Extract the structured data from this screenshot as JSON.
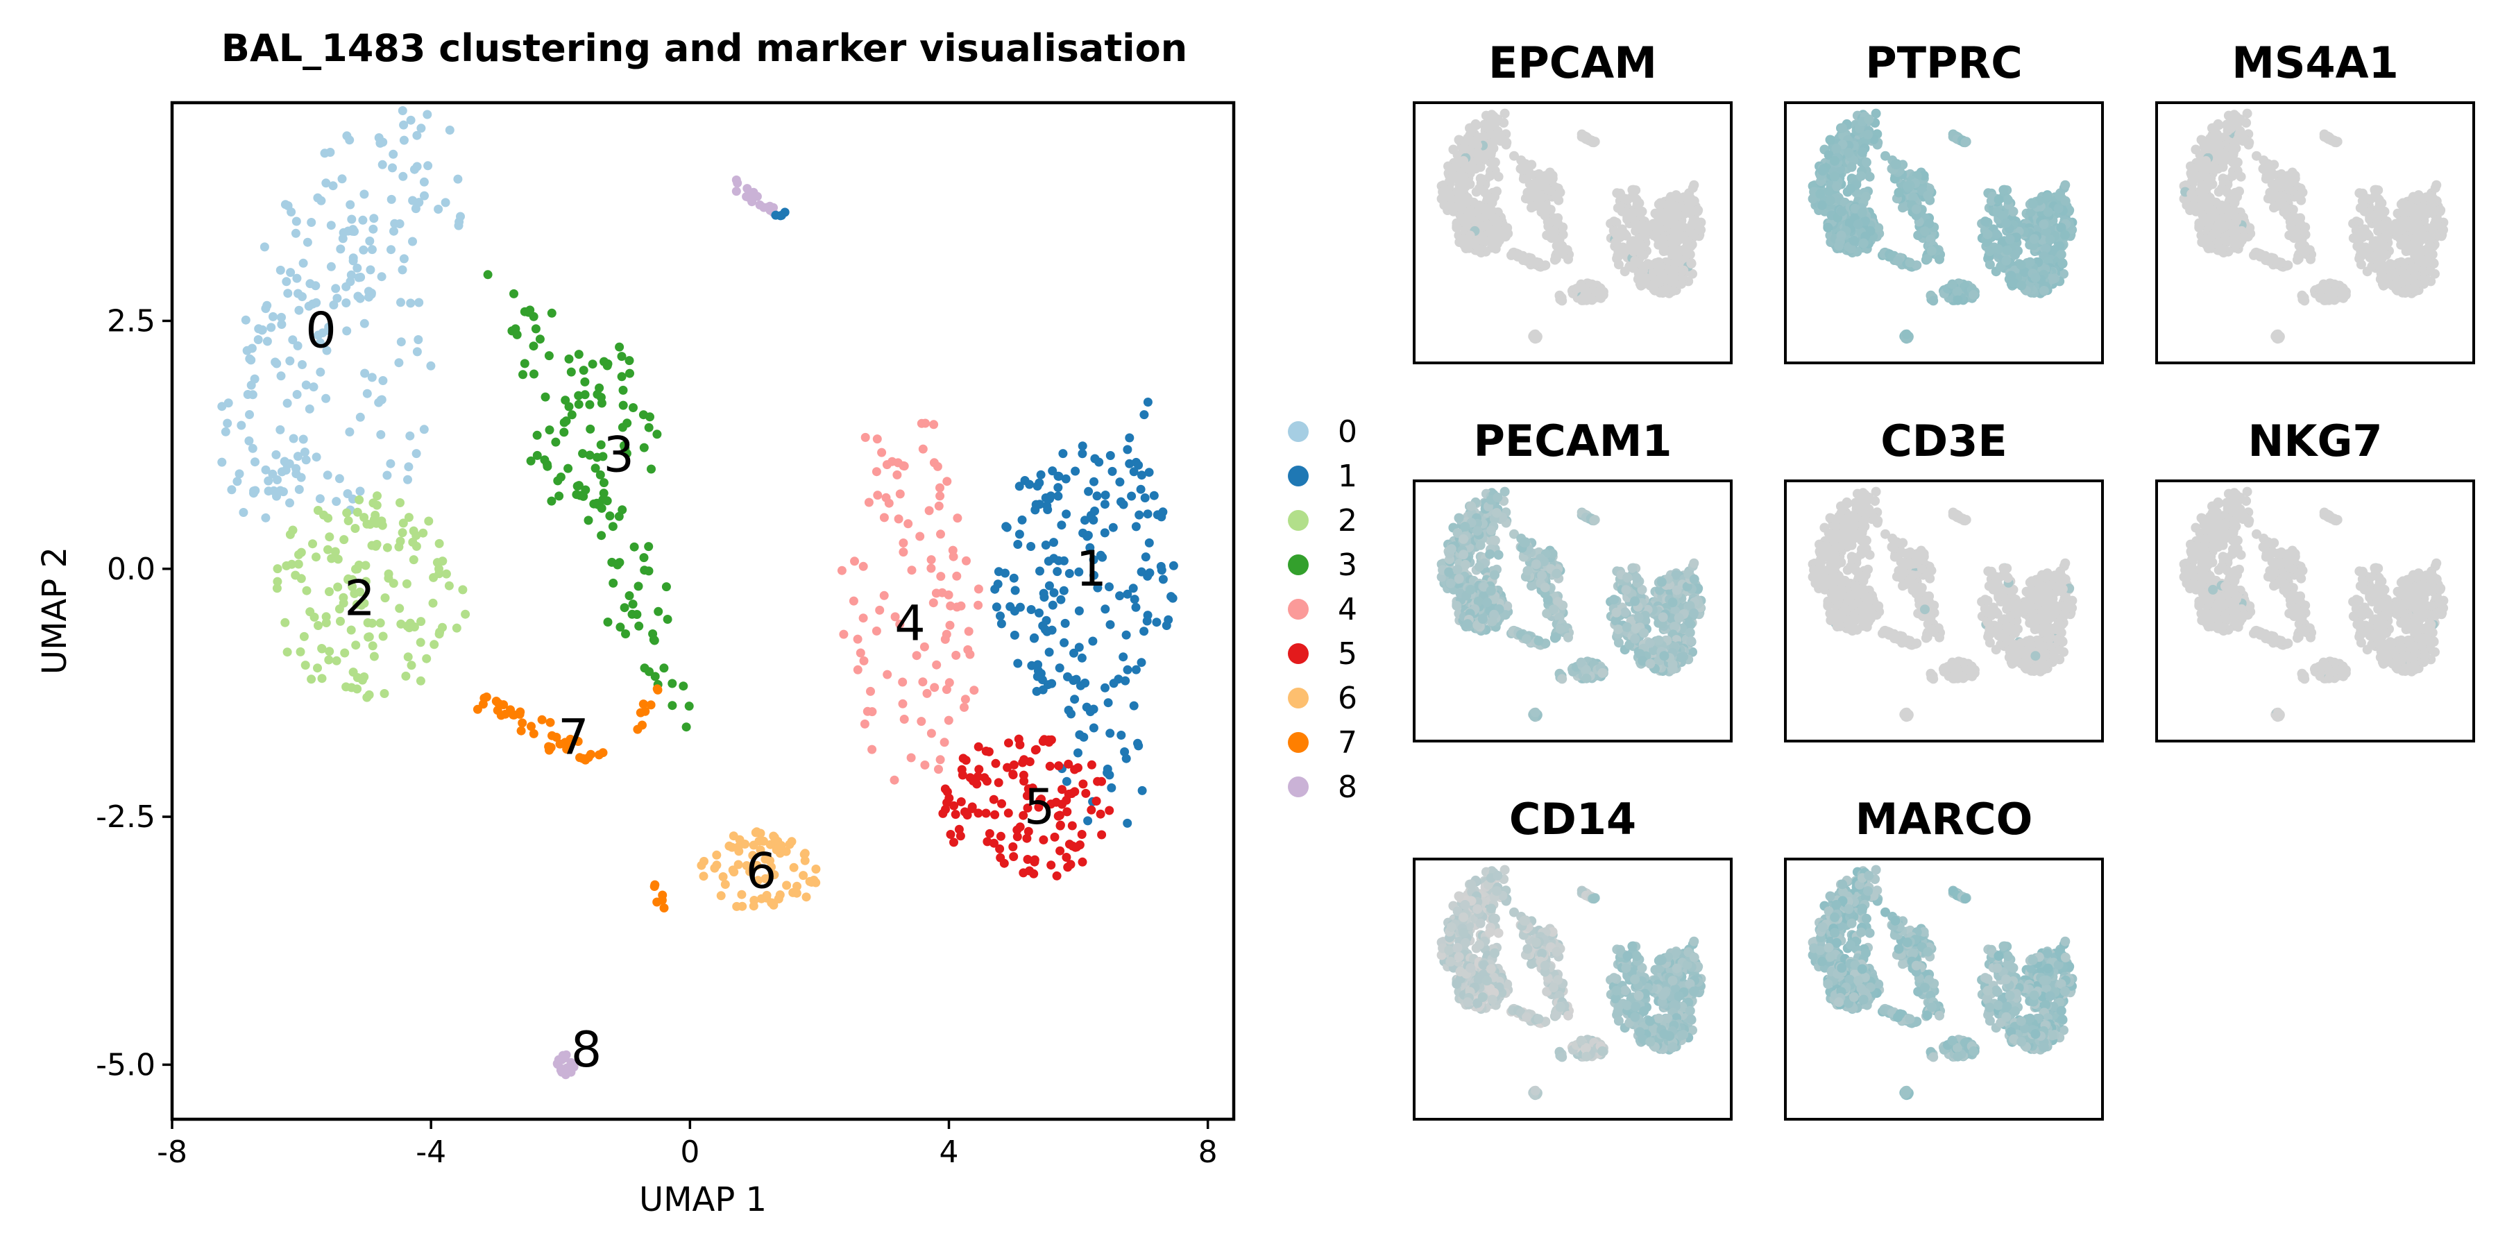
{
  "colors": {
    "cluster": [
      "#a6cee3",
      "#1f78b4",
      "#b2df8a",
      "#33a02c",
      "#fb9a99",
      "#e31a1c",
      "#fdbf6f",
      "#ff7f00",
      "#cab2d6"
    ],
    "feature_low": "#d3d3d3",
    "feature_high": "#8bbdc3"
  },
  "chart_data": [
    {
      "type": "scatter",
      "title": "BAL_1483 clustering and marker visualisation",
      "xlabel": "UMAP 1",
      "ylabel": "UMAP 2",
      "xlim": [
        -8,
        8.4
      ],
      "ylim": [
        -5.55,
        4.7
      ],
      "xticks": [
        -8,
        -4,
        0,
        4,
        8
      ],
      "xtick_labels": [
        "-8",
        "-4",
        "0",
        "4",
        "8"
      ],
      "yticks": [
        -5.0,
        -2.5,
        0.0,
        2.5
      ],
      "ytick_labels": [
        "-5.0",
        "-2.5",
        "0.0",
        "2.5"
      ],
      "legend_position": "right",
      "legend": [
        "0",
        "1",
        "2",
        "3",
        "4",
        "5",
        "6",
        "7",
        "8"
      ],
      "clusters": [
        {
          "name": "0",
          "label": "0",
          "label_at": [
            -5.7,
            2.4
          ]
        },
        {
          "name": "1",
          "label": "1",
          "label_at": [
            6.2,
            0.0
          ]
        },
        {
          "name": "2",
          "label": "2",
          "label_at": [
            -5.1,
            -0.3
          ]
        },
        {
          "name": "3",
          "label": "3",
          "label_at": [
            -1.1,
            1.15
          ]
        },
        {
          "name": "4",
          "label": "4",
          "label_at": [
            3.4,
            -0.55
          ]
        },
        {
          "name": "5",
          "label": "5",
          "label_at": [
            5.4,
            -2.4
          ]
        },
        {
          "name": "6",
          "label": "6",
          "label_at": [
            1.1,
            -3.05
          ]
        },
        {
          "name": "7",
          "label": "7",
          "label_at": [
            -1.8,
            -1.7
          ]
        },
        {
          "name": "8",
          "label": "8",
          "label_at": [
            -1.6,
            -4.85
          ]
        }
      ]
    },
    {
      "type": "scatter",
      "panel_type": "feature_plot_grid",
      "panels": [
        {
          "title": "EPCAM",
          "expr": "none"
        },
        {
          "title": "PTPRC",
          "expr": "high"
        },
        {
          "title": "MS4A1",
          "expr": "none"
        },
        {
          "title": "PECAM1",
          "expr": "medium"
        },
        {
          "title": "CD3E",
          "expr": "none"
        },
        {
          "title": "NKG7",
          "expr": "none"
        },
        {
          "title": "CD14",
          "expr": "mixed"
        },
        {
          "title": "MARCO",
          "expr": "medium-high"
        }
      ]
    }
  ]
}
